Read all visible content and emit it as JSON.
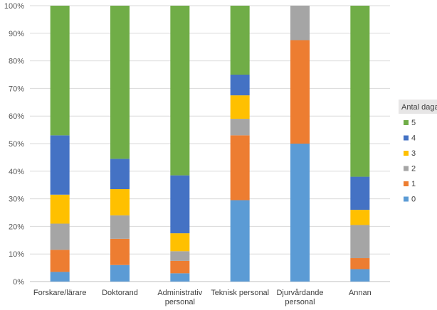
{
  "chart_data": {
    "type": "bar",
    "stacked": true,
    "percent": true,
    "categories": [
      [
        "Forskare/lärare"
      ],
      [
        "Doktorand"
      ],
      [
        "Administrativ",
        "personal"
      ],
      [
        "Teknisk personal"
      ],
      [
        "Djurvårdande",
        "personal"
      ],
      [
        "Annan"
      ]
    ],
    "ylim": [
      0,
      100
    ],
    "yticks": [
      "0%",
      "10%",
      "20%",
      "30%",
      "40%",
      "50%",
      "60%",
      "70%",
      "80%",
      "90%",
      "100%"
    ],
    "grid": true,
    "legend": {
      "title": "Antal dagar",
      "position": "right"
    },
    "series": [
      {
        "name": "0",
        "color": "#5B9BD5",
        "values": [
          3.5,
          6,
          3,
          29.5,
          50,
          4.5
        ]
      },
      {
        "name": "1",
        "color": "#ED7D31",
        "values": [
          8,
          9.5,
          4.5,
          23.5,
          37.5,
          4
        ]
      },
      {
        "name": "2",
        "color": "#A5A5A5",
        "values": [
          9.5,
          8.5,
          3.5,
          6,
          12.5,
          12
        ]
      },
      {
        "name": "3",
        "color": "#FFC000",
        "values": [
          10.5,
          9.5,
          6.5,
          8.5,
          0,
          5.5
        ]
      },
      {
        "name": "4",
        "color": "#4472C4",
        "values": [
          21.5,
          11,
          21,
          7.5,
          0,
          12
        ]
      },
      {
        "name": "5",
        "color": "#70AD47",
        "values": [
          47,
          55.5,
          61.5,
          25,
          0,
          62
        ]
      }
    ]
  }
}
